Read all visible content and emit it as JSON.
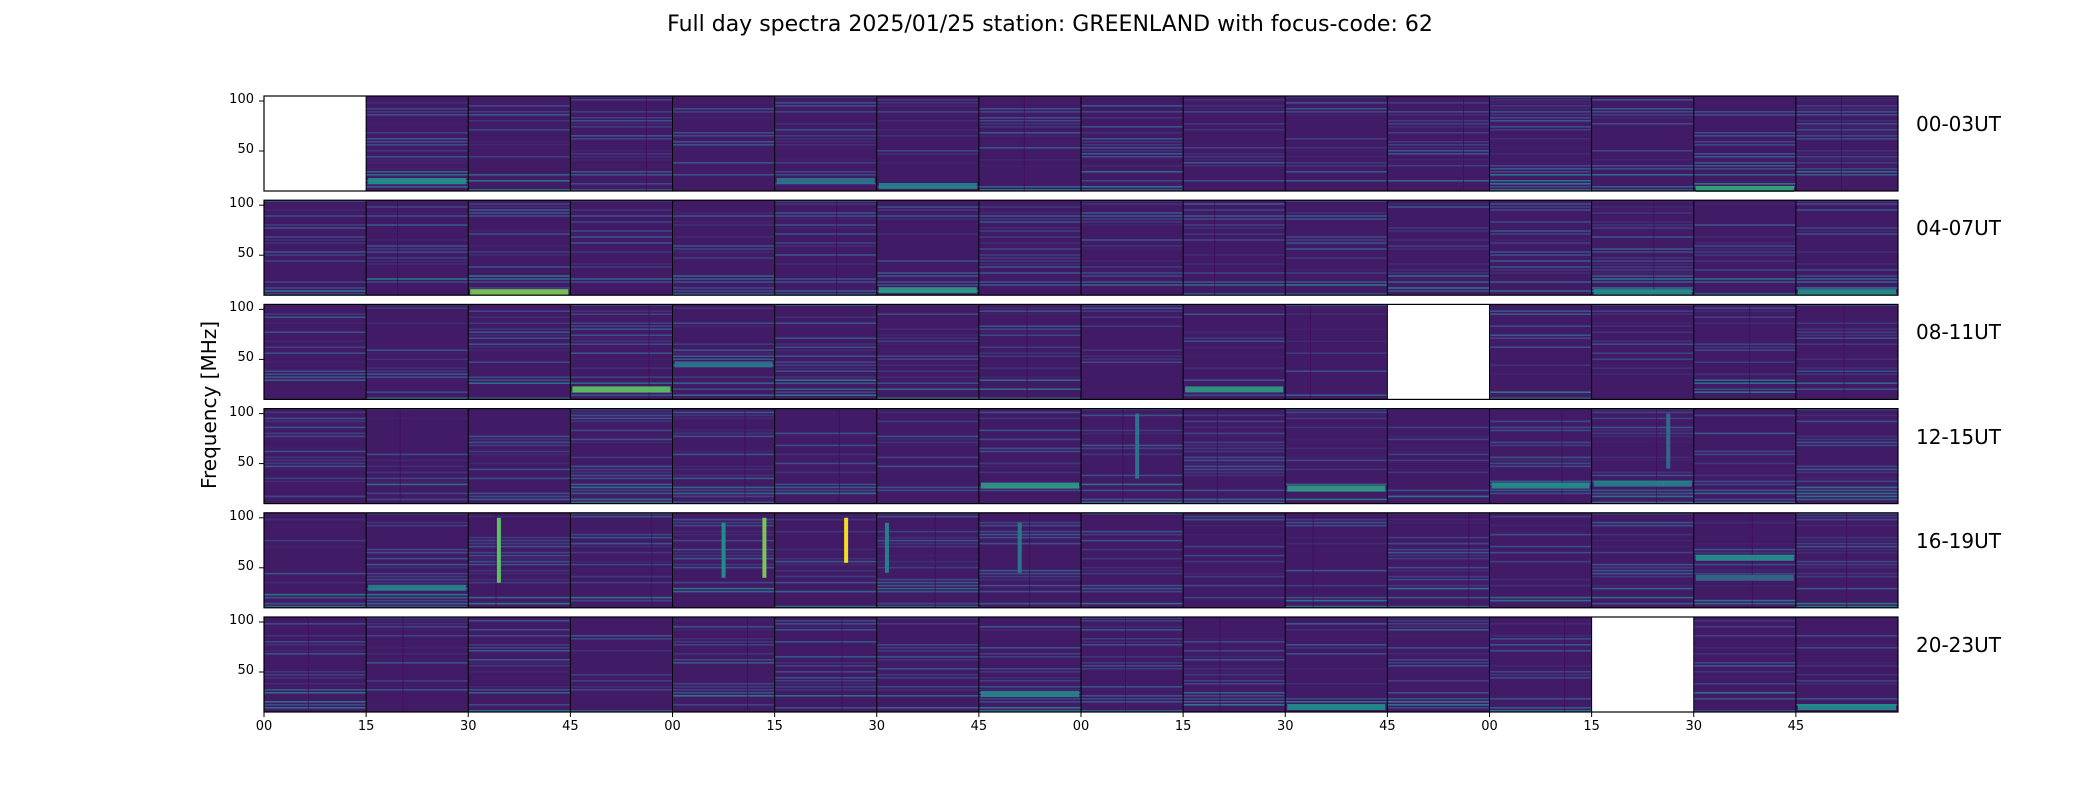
{
  "chart_data": {
    "type": "heatmap",
    "title": "Full day spectra 2025/01/25 station: GREENLAND with focus-code: 62",
    "ylabel": "Frequency [MHz]",
    "xlabel": "",
    "colormap": "viridis",
    "yticks": [
      "100",
      "50"
    ],
    "ylim": [
      10,
      105
    ],
    "xticks": [
      "00",
      "15",
      "30",
      "45",
      "00",
      "15",
      "30",
      "45",
      "00",
      "15",
      "30",
      "45",
      "00",
      "15",
      "30",
      "45"
    ],
    "panels_per_row": 16,
    "panel_minutes": 15,
    "rows": [
      {
        "label": "00-03UT",
        "missing_panels": [
          0
        ],
        "bright_bands": [
          {
            "panel": 1,
            "freq": 20,
            "intensity": 0.5
          },
          {
            "panel": 5,
            "freq": 20,
            "intensity": 0.4
          },
          {
            "panel": 6,
            "freq": 15,
            "intensity": 0.45
          },
          {
            "panel": 14,
            "freq": 12,
            "intensity": 0.6
          }
        ],
        "bursts": []
      },
      {
        "label": "04-07UT",
        "missing_panels": [],
        "bright_bands": [
          {
            "panel": 2,
            "freq": 13,
            "intensity": 0.8
          },
          {
            "panel": 6,
            "freq": 15,
            "intensity": 0.55
          },
          {
            "panel": 13,
            "freq": 13,
            "intensity": 0.5
          },
          {
            "panel": 15,
            "freq": 13,
            "intensity": 0.5
          }
        ],
        "bursts": []
      },
      {
        "label": "08-11UT",
        "missing_panels": [
          11
        ],
        "bright_bands": [
          {
            "panel": 3,
            "freq": 20,
            "intensity": 0.75
          },
          {
            "panel": 9,
            "freq": 20,
            "intensity": 0.55
          },
          {
            "panel": 4,
            "freq": 45,
            "intensity": 0.4
          }
        ],
        "bursts": []
      },
      {
        "label": "12-15UT",
        "missing_panels": [],
        "bright_bands": [
          {
            "panel": 7,
            "freq": 28,
            "intensity": 0.55
          },
          {
            "panel": 10,
            "freq": 25,
            "intensity": 0.55
          },
          {
            "panel": 12,
            "freq": 28,
            "intensity": 0.5
          },
          {
            "panel": 13,
            "freq": 30,
            "intensity": 0.45
          }
        ],
        "bursts": [
          {
            "panel": 8,
            "x": 0.55,
            "fmin": 35,
            "fmax": 100,
            "intensity": 0.4
          },
          {
            "panel": 13,
            "x": 0.75,
            "fmin": 45,
            "fmax": 100,
            "intensity": 0.35
          }
        ]
      },
      {
        "label": "16-19UT",
        "missing_panels": [],
        "bright_bands": [
          {
            "panel": 1,
            "freq": 30,
            "intensity": 0.45
          },
          {
            "panel": 14,
            "freq": 60,
            "intensity": 0.5
          },
          {
            "panel": 14,
            "freq": 40,
            "intensity": 0.35
          }
        ],
        "bursts": [
          {
            "panel": 2,
            "x": 0.3,
            "fmin": 35,
            "fmax": 100,
            "intensity": 0.75
          },
          {
            "panel": 4,
            "x": 0.5,
            "fmin": 40,
            "fmax": 95,
            "intensity": 0.5
          },
          {
            "panel": 4,
            "x": 0.9,
            "fmin": 40,
            "fmax": 100,
            "intensity": 0.8
          },
          {
            "panel": 5,
            "x": 0.7,
            "fmin": 55,
            "fmax": 100,
            "intensity": 1.0
          },
          {
            "panel": 6,
            "x": 0.1,
            "fmin": 45,
            "fmax": 95,
            "intensity": 0.45
          },
          {
            "panel": 7,
            "x": 0.4,
            "fmin": 45,
            "fmax": 95,
            "intensity": 0.4
          }
        ]
      },
      {
        "label": "20-23UT",
        "missing_panels": [
          13
        ],
        "bright_bands": [
          {
            "panel": 7,
            "freq": 28,
            "intensity": 0.45
          },
          {
            "panel": 10,
            "freq": 15,
            "intensity": 0.5
          },
          {
            "panel": 15,
            "freq": 15,
            "intensity": 0.5
          }
        ],
        "bursts": []
      }
    ]
  }
}
